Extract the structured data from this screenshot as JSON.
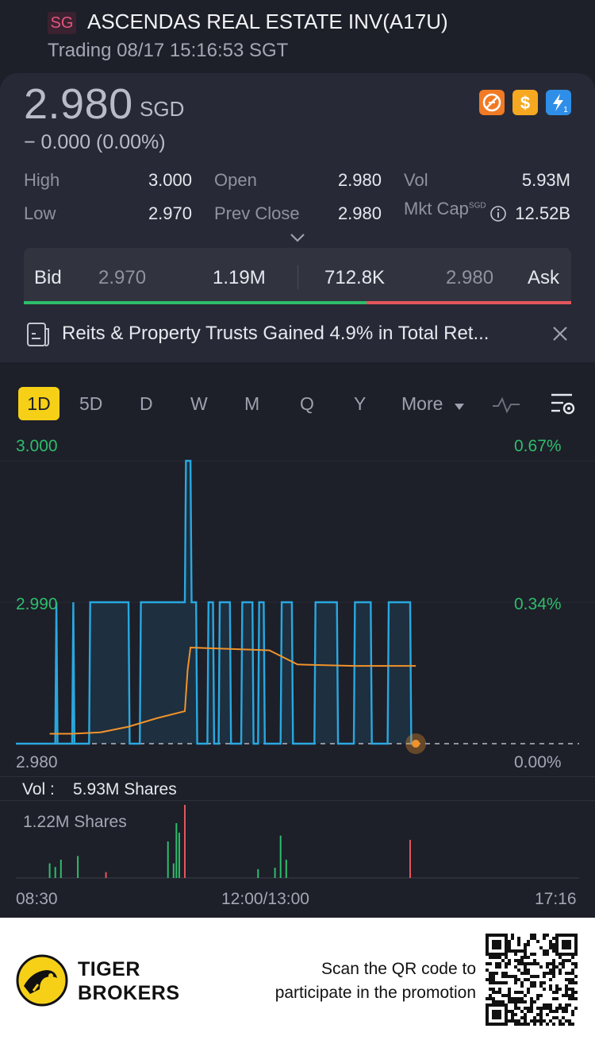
{
  "header": {
    "market": "SG",
    "title": "ASCENDAS REAL ESTATE INV(A17U)",
    "status": "Trading 08/17 15:16:53 SGT"
  },
  "quote": {
    "price": "2.980",
    "currency": "SGD",
    "change": "− 0.000 (0.00%)",
    "stats": {
      "high_label": "High",
      "high": "3.000",
      "low_label": "Low",
      "low": "2.970",
      "open_label": "Open",
      "open": "2.980",
      "prev_close_label": "Prev Close",
      "prev_close": "2.980",
      "vol_label": "Vol",
      "vol": "5.93M",
      "mkt_cap_label": "Mkt Cap",
      "mkt_cap_currency": "SGD",
      "mkt_cap": "12.52B"
    }
  },
  "bid_ask": {
    "bid_label": "Bid",
    "bid_price": "2.970",
    "bid_size": "1.19M",
    "ask_size": "712.8K",
    "ask_price": "2.980",
    "ask_label": "Ask",
    "bid_fraction": 0.626
  },
  "news": {
    "text": "Reits & Property Trusts Gained 4.9% in Total Ret..."
  },
  "tabs": [
    "1D",
    "5D",
    "D",
    "W",
    "M",
    "Q",
    "Y",
    "More"
  ],
  "chart": {
    "price_axis": [
      "3.000",
      "2.990",
      "2.980"
    ],
    "percent_axis": [
      "0.67%",
      "0.34%",
      "0.00%"
    ],
    "volume_label": "Vol :",
    "volume_value": "5.93M Shares",
    "volume_max": "1.22M Shares",
    "time_labels": [
      "08:30",
      "12:00/13:00",
      "17:16"
    ]
  },
  "chart_data": {
    "type": "line",
    "title": "ASCENDAS REAL ESTATE INV(A17U) 1D",
    "ylim": [
      2.98,
      3.0
    ],
    "series": [
      {
        "name": "Price",
        "color": "#29a8e0",
        "points": [
          [
            0,
            2.98
          ],
          [
            0.07,
            2.98
          ],
          [
            0.072,
            2.99
          ],
          [
            0.074,
            2.98
          ],
          [
            0.1,
            2.98
          ],
          [
            0.102,
            2.99
          ],
          [
            0.104,
            2.98
          ],
          [
            0.13,
            2.98
          ],
          [
            0.132,
            2.99
          ],
          [
            0.2,
            2.99
          ],
          [
            0.202,
            2.98
          ],
          [
            0.22,
            2.98
          ],
          [
            0.222,
            2.99
          ],
          [
            0.3,
            2.99
          ],
          [
            0.302,
            3.0
          ],
          [
            0.31,
            3.0
          ],
          [
            0.312,
            2.99
          ],
          [
            0.32,
            2.99
          ],
          [
            0.322,
            2.98
          ],
          [
            0.34,
            2.98
          ],
          [
            0.342,
            2.99
          ],
          [
            0.35,
            2.99
          ],
          [
            0.352,
            2.98
          ],
          [
            0.36,
            2.98
          ],
          [
            0.362,
            2.99
          ],
          [
            0.38,
            2.99
          ],
          [
            0.382,
            2.98
          ],
          [
            0.4,
            2.98
          ],
          [
            0.402,
            2.99
          ],
          [
            0.42,
            2.99
          ],
          [
            0.422,
            2.98
          ],
          [
            0.43,
            2.98
          ],
          [
            0.432,
            2.99
          ],
          [
            0.44,
            2.99
          ],
          [
            0.442,
            2.98
          ],
          [
            0.47,
            2.98
          ],
          [
            0.472,
            2.99
          ],
          [
            0.49,
            2.99
          ],
          [
            0.492,
            2.98
          ],
          [
            0.53,
            2.98
          ],
          [
            0.532,
            2.99
          ],
          [
            0.57,
            2.99
          ],
          [
            0.572,
            2.98
          ],
          [
            0.6,
            2.98
          ],
          [
            0.602,
            2.99
          ],
          [
            0.63,
            2.99
          ],
          [
            0.632,
            2.98
          ],
          [
            0.66,
            2.98
          ],
          [
            0.662,
            2.99
          ],
          [
            0.7,
            2.99
          ],
          [
            0.702,
            2.98
          ],
          [
            0.71,
            2.98
          ]
        ]
      },
      {
        "name": "Average",
        "color": "#f0932b",
        "points": [
          [
            0.06,
            2.9807
          ],
          [
            0.1,
            2.9807
          ],
          [
            0.15,
            2.9808
          ],
          [
            0.2,
            2.9812
          ],
          [
            0.25,
            2.9818
          ],
          [
            0.3,
            2.9823
          ],
          [
            0.305,
            2.9852
          ],
          [
            0.31,
            2.9868
          ],
          [
            0.45,
            2.9866
          ],
          [
            0.5,
            2.9856
          ],
          [
            0.6,
            2.9855
          ],
          [
            0.71,
            2.9855
          ]
        ]
      }
    ],
    "prev_close": 2.98,
    "volume": {
      "max_shares": 1220000,
      "bars": [
        [
          0.06,
          0.2,
          "g"
        ],
        [
          0.07,
          0.15,
          "g"
        ],
        [
          0.08,
          0.25,
          "g"
        ],
        [
          0.11,
          0.3,
          "g"
        ],
        [
          0.16,
          0.08,
          "r"
        ],
        [
          0.27,
          0.5,
          "g"
        ],
        [
          0.28,
          0.2,
          "g"
        ],
        [
          0.285,
          0.75,
          "g"
        ],
        [
          0.29,
          0.62,
          "g"
        ],
        [
          0.3,
          1.0,
          "r"
        ],
        [
          0.43,
          0.12,
          "g"
        ],
        [
          0.46,
          0.14,
          "g"
        ],
        [
          0.47,
          0.58,
          "g"
        ],
        [
          0.48,
          0.25,
          "g"
        ],
        [
          0.7,
          0.52,
          "r"
        ]
      ]
    }
  },
  "footer": {
    "brand_line1": "TIGER",
    "brand_line2": "BROKERS",
    "promo_line1": "Scan the QR code to",
    "promo_line2": "participate in the promotion"
  },
  "colors": {
    "up": "#2ebd6b",
    "down": "#e4555d",
    "price_line": "#29a8e0",
    "avg_line": "#f0932b",
    "accent": "#f6d017"
  }
}
